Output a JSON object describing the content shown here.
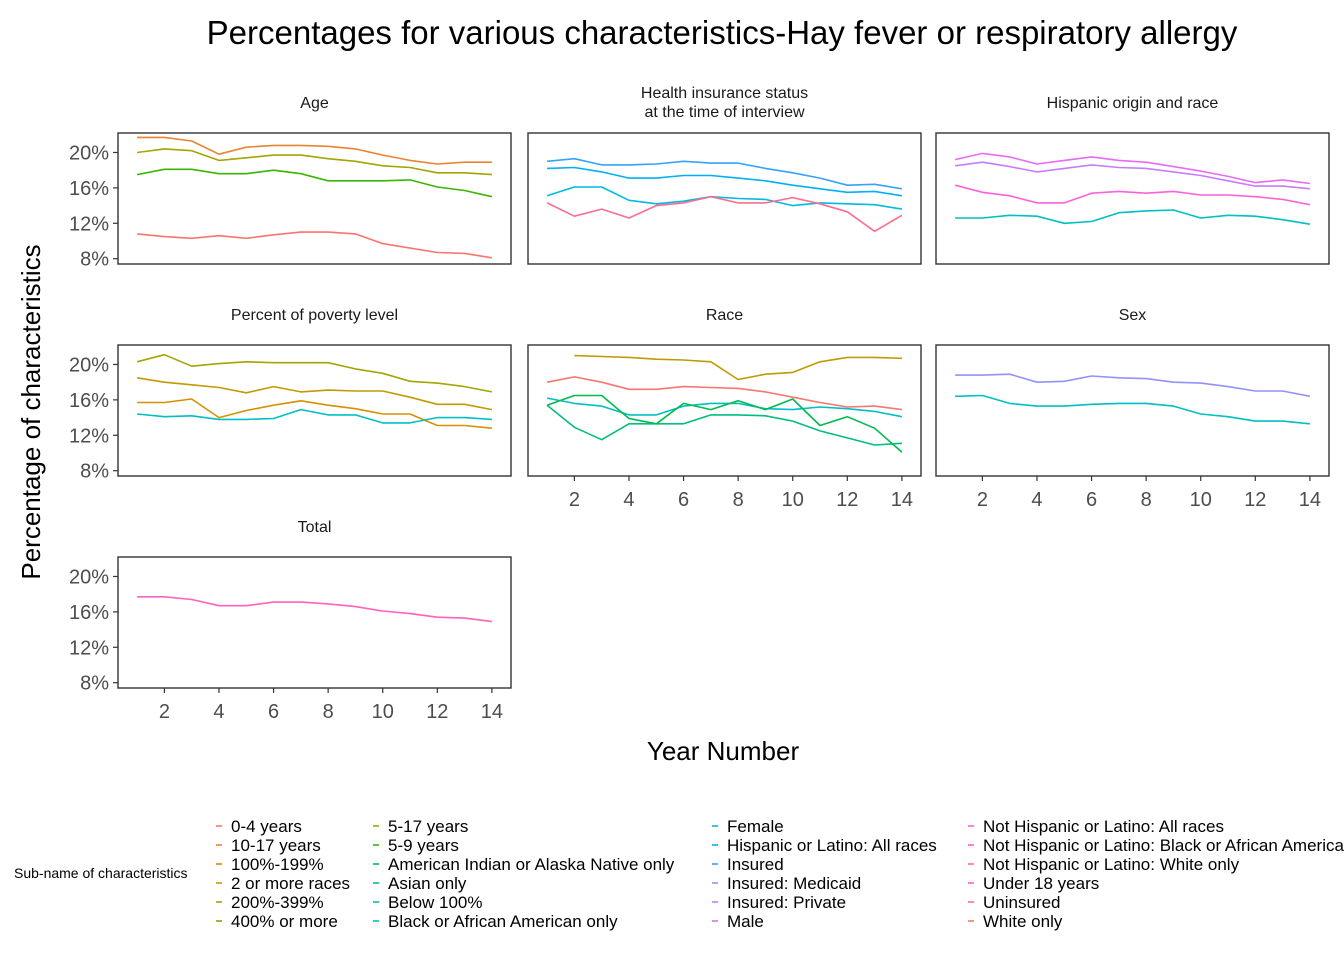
{
  "chart_data": {
    "type": "line",
    "title": "Percentages for various characteristics-Hay fever or respiratory allergy",
    "xlabel": "Year Number",
    "ylabel": "Percentage of characteristics",
    "x": [
      1,
      2,
      3,
      4,
      5,
      6,
      7,
      8,
      9,
      10,
      11,
      12,
      13,
      14
    ],
    "xticks": [
      2,
      4,
      6,
      8,
      10,
      12,
      14
    ],
    "xlim": [
      0.3,
      14.7
    ],
    "ylim": [
      7.4,
      22.2
    ],
    "yticks": [
      8,
      12,
      16,
      20
    ],
    "ytick_labels": [
      "8%",
      "12%",
      "16%",
      "20%"
    ],
    "facet_grid": {
      "columns": 3,
      "rows": 3
    },
    "grid": false,
    "legend": {
      "title": "Sub-name of characteristics",
      "position": "bottom",
      "columns": [
        [
          "0-4 years",
          "10-17 years",
          "100%-199%",
          "2 or more races",
          "200%-399%",
          "400% or more"
        ],
        [
          "5-17 years",
          "5-9 years",
          "American Indian or Alaska Native only",
          "Asian only",
          "Below 100%",
          "Black or African American only"
        ],
        [
          "Female",
          "Hispanic or Latino: All races",
          "Insured",
          "Insured: Medicaid",
          "Insured: Private",
          "Male"
        ],
        [
          "Not Hispanic or Latino: All races",
          "Not Hispanic or Latino: Black or African American only",
          "Not Hispanic or Latino: White only",
          "Under 18 years",
          "Uninsured",
          "White only"
        ]
      ]
    },
    "colors": {
      "0-4 years": "#F8766D",
      "10-17 years": "#EA8331",
      "100%-199%": "#D89000",
      "2 or more races": "#C09B00",
      "200%-399%": "#A3A500",
      "400% or more": "#7CAE00",
      "5-17 years": "#A3A500",
      "5-9 years": "#39B600",
      "American Indian or Alaska Native only": "#00BB4E",
      "Asian only": "#00BF7D",
      "Below 100%": "#00C1A3",
      "Black or African American only": "#00BFC4",
      "Female": "#00BAE0",
      "Hispanic or Latino: All races": "#00B0F6",
      "Insured": "#35A2FF",
      "Insured: Medicaid": "#9590FF",
      "Insured: Private": "#C77CFF",
      "Male": "#E76BF3",
      "Not Hispanic or Latino: All races": "#FA62DB",
      "Not Hispanic or Latino: Black or African American only": "#FF62BC",
      "Not Hispanic or Latino: White only": "#FF6C91",
      "Under 18 years": "#FF62BC",
      "Uninsured": "#FF6C91",
      "White only": "#F8766D"
    },
    "facets": [
      {
        "name": "Age",
        "title": [
          "Age"
        ],
        "series": [
          {
            "name": "0-4 years",
            "color": "#F8766D",
            "values": [
              10.8,
              10.5,
              10.3,
              10.6,
              10.3,
              10.7,
              11.0,
              11.0,
              10.8,
              9.7,
              9.2,
              8.7,
              8.6,
              8.1
            ]
          },
          {
            "name": "10-17 years",
            "color": "#EA8331",
            "values": [
              21.7,
              21.7,
              21.3,
              19.8,
              20.6,
              20.8,
              20.8,
              20.7,
              20.4,
              19.7,
              19.1,
              18.7,
              18.9,
              18.9
            ]
          },
          {
            "name": "5-17 years",
            "color": "#A3A500",
            "values": [
              20.0,
              20.4,
              20.2,
              19.1,
              19.4,
              19.7,
              19.7,
              19.3,
              19.0,
              18.5,
              18.3,
              17.7,
              17.7,
              17.5
            ]
          },
          {
            "name": "5-9 years",
            "color": "#39B600",
            "values": [
              17.5,
              18.1,
              18.1,
              17.6,
              17.6,
              18.0,
              17.6,
              16.8,
              16.8,
              16.8,
              16.9,
              16.1,
              15.7,
              15.0
            ]
          }
        ]
      },
      {
        "name": "Health insurance status at the time of interview",
        "title": [
          "Health insurance status",
          "at the time of interview"
        ],
        "series": [
          {
            "name": "Insured",
            "color": "#35A2FF",
            "values": [
              19.0,
              19.3,
              18.6,
              18.6,
              18.7,
              19.0,
              18.8,
              18.8,
              18.2,
              17.7,
              17.1,
              16.3,
              16.4,
              15.9
            ]
          },
          {
            "name": "Insured: Private",
            "color": "#00B0F6",
            "values": [
              18.2,
              18.3,
              17.8,
              17.1,
              17.1,
              17.4,
              17.4,
              17.1,
              16.8,
              16.3,
              15.9,
              15.5,
              15.6,
              15.1
            ]
          },
          {
            "name": "Insured: Medicaid",
            "color": "#00BAE0",
            "values": [
              15.1,
              16.1,
              16.1,
              14.6,
              14.2,
              14.5,
              15.0,
              14.8,
              14.7,
              14.0,
              14.3,
              14.2,
              14.1,
              13.6
            ]
          },
          {
            "name": "Uninsured",
            "color": "#FF6C91",
            "values": [
              14.3,
              12.8,
              13.6,
              12.6,
              14.0,
              14.3,
              15.0,
              14.3,
              14.3,
              14.9,
              14.2,
              13.3,
              11.1,
              12.9
            ]
          }
        ]
      },
      {
        "name": "Hispanic origin and race",
        "title": [
          "Hispanic origin and race"
        ],
        "series": [
          {
            "name": "Not Hispanic or Latino: White only",
            "color": "#E76BF3",
            "values": [
              19.2,
              19.9,
              19.5,
              18.7,
              19.1,
              19.5,
              19.1,
              18.9,
              18.4,
              17.9,
              17.3,
              16.6,
              16.9,
              16.5
            ]
          },
          {
            "name": "Not Hispanic or Latino: All races",
            "color": "#C77CFF",
            "values": [
              18.5,
              18.9,
              18.4,
              17.8,
              18.2,
              18.6,
              18.3,
              18.2,
              17.8,
              17.4,
              16.8,
              16.2,
              16.2,
              15.9
            ]
          },
          {
            "name": "Not Hispanic or Latino: Black or African American only",
            "color": "#FA62DB",
            "values": [
              16.3,
              15.5,
              15.1,
              14.3,
              14.3,
              15.4,
              15.6,
              15.4,
              15.6,
              15.2,
              15.2,
              15.0,
              14.7,
              14.1
            ]
          },
          {
            "name": "Hispanic or Latino: All races",
            "color": "#00BFC4",
            "values": [
              12.6,
              12.6,
              12.9,
              12.8,
              12.0,
              12.2,
              13.2,
              13.4,
              13.5,
              12.6,
              12.9,
              12.8,
              12.4,
              11.9
            ]
          }
        ]
      },
      {
        "name": "Percent of poverty level",
        "title": [
          "Percent of poverty level"
        ],
        "series": [
          {
            "name": "400% or more",
            "color": "#A3A500",
            "values": [
              20.3,
              21.1,
              19.8,
              20.1,
              20.3,
              20.2,
              20.2,
              20.2,
              19.5,
              19.0,
              18.1,
              17.9,
              17.5,
              16.9
            ]
          },
          {
            "name": "200%-399%",
            "color": "#C09B00",
            "values": [
              18.5,
              18.0,
              17.7,
              17.4,
              16.8,
              17.5,
              16.9,
              17.1,
              17.0,
              17.0,
              16.3,
              15.5,
              15.5,
              14.9
            ]
          },
          {
            "name": "100%-199%",
            "color": "#D89000",
            "values": [
              15.7,
              15.7,
              16.1,
              14.0,
              14.8,
              15.4,
              15.9,
              15.4,
              15.0,
              14.4,
              14.4,
              13.1,
              13.1,
              12.8
            ]
          },
          {
            "name": "Below 100%",
            "color": "#00BFC4",
            "values": [
              14.4,
              14.1,
              14.2,
              13.8,
              13.8,
              13.9,
              14.9,
              14.3,
              14.3,
              13.4,
              13.4,
              14.0,
              14.0,
              13.8
            ]
          }
        ]
      },
      {
        "name": "Race",
        "title": [
          "Race"
        ],
        "series": [
          {
            "name": "Asian only",
            "color": "#C09B00",
            "values": [
              null,
              21.0,
              20.9,
              20.8,
              20.6,
              20.5,
              20.3,
              18.3,
              18.9,
              19.1,
              20.3,
              20.8,
              20.8,
              20.7
            ]
          },
          {
            "name": "White only",
            "color": "#F8766D",
            "values": [
              18.0,
              18.6,
              18.0,
              17.2,
              17.2,
              17.5,
              17.4,
              17.3,
              16.9,
              16.3,
              15.7,
              15.2,
              15.3,
              14.9
            ]
          },
          {
            "name": "Black or African American only",
            "color": "#00BFC4",
            "values": [
              16.2,
              15.6,
              15.3,
              14.3,
              14.3,
              15.3,
              15.6,
              15.6,
              15.0,
              14.9,
              15.2,
              15.0,
              14.7,
              14.1
            ]
          },
          {
            "name": "2 or more races",
            "color": "#00BF7D",
            "values": [
              15.4,
              12.9,
              11.5,
              13.3,
              13.3,
              13.3,
              14.3,
              14.3,
              14.2,
              13.6,
              12.5,
              11.7,
              10.9,
              11.1
            ]
          },
          {
            "name": "American Indian or Alaska Native only",
            "color": "#00BB4E",
            "values": [
              15.4,
              16.5,
              16.5,
              13.9,
              13.3,
              15.6,
              14.9,
              15.9,
              14.9,
              16.1,
              13.1,
              14.1,
              12.8,
              10.1
            ]
          }
        ]
      },
      {
        "name": "Sex",
        "title": [
          "Sex"
        ],
        "series": [
          {
            "name": "Male",
            "color": "#9590FF",
            "values": [
              18.8,
              18.8,
              18.9,
              18.0,
              18.1,
              18.7,
              18.5,
              18.4,
              18.0,
              17.9,
              17.5,
              17.0,
              17.0,
              16.4
            ]
          },
          {
            "name": "Female",
            "color": "#00BFC4",
            "values": [
              16.4,
              16.5,
              15.6,
              15.3,
              15.3,
              15.5,
              15.6,
              15.6,
              15.3,
              14.4,
              14.1,
              13.6,
              13.6,
              13.3
            ]
          }
        ]
      },
      {
        "name": "Total",
        "title": [
          "Total"
        ],
        "series": [
          {
            "name": "Total",
            "color": "#FF62BC",
            "values": [
              17.7,
              17.7,
              17.4,
              16.7,
              16.7,
              17.1,
              17.1,
              16.9,
              16.6,
              16.1,
              15.8,
              15.4,
              15.3,
              14.9
            ]
          }
        ]
      }
    ]
  }
}
